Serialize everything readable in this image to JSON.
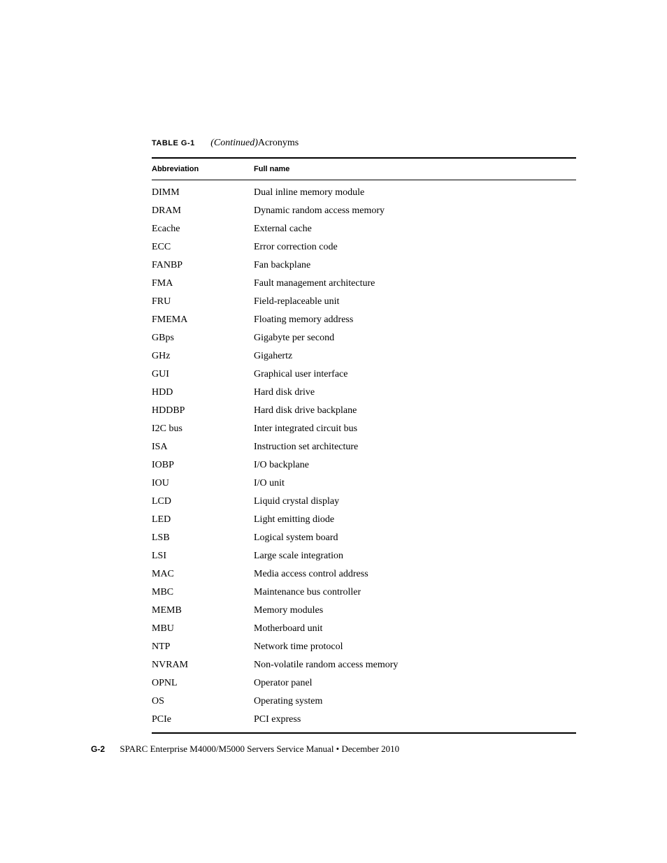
{
  "caption": {
    "label": "TABLE G-1",
    "continued": "(Continued)",
    "title": "Acronyms"
  },
  "table": {
    "headers": {
      "abbr": "Abbreviation",
      "fullname": "Full name"
    },
    "rows": [
      {
        "abbr": "DIMM",
        "fullname": "Dual inline memory module"
      },
      {
        "abbr": "DRAM",
        "fullname": "Dynamic random access memory"
      },
      {
        "abbr": "Ecache",
        "fullname": "External cache"
      },
      {
        "abbr": "ECC",
        "fullname": "Error correction code"
      },
      {
        "abbr": "FANBP",
        "fullname": "Fan backplane"
      },
      {
        "abbr": "FMA",
        "fullname": "Fault management architecture"
      },
      {
        "abbr": "FRU",
        "fullname": "Field-replaceable unit"
      },
      {
        "abbr": "FMEMA",
        "fullname": "Floating memory address"
      },
      {
        "abbr": "GBps",
        "fullname": "Gigabyte per second"
      },
      {
        "abbr": "GHz",
        "fullname": "Gigahertz"
      },
      {
        "abbr": "GUI",
        "fullname": "Graphical user interface"
      },
      {
        "abbr": "HDD",
        "fullname": "Hard disk drive"
      },
      {
        "abbr": "HDDBP",
        "fullname": "Hard disk drive backplane"
      },
      {
        "abbr": "I2C bus",
        "fullname": "Inter integrated circuit bus"
      },
      {
        "abbr": "ISA",
        "fullname": "Instruction set architecture"
      },
      {
        "abbr": "IOBP",
        "fullname": "I/O backplane"
      },
      {
        "abbr": "IOU",
        "fullname": "I/O unit"
      },
      {
        "abbr": "LCD",
        "fullname": "Liquid crystal display"
      },
      {
        "abbr": "LED",
        "fullname": "Light emitting diode"
      },
      {
        "abbr": "LSB",
        "fullname": "Logical system board"
      },
      {
        "abbr": "LSI",
        "fullname": "Large scale integration"
      },
      {
        "abbr": "MAC",
        "fullname": "Media access control address"
      },
      {
        "abbr": "MBC",
        "fullname": "Maintenance bus controller"
      },
      {
        "abbr": "MEMB",
        "fullname": "Memory modules"
      },
      {
        "abbr": "MBU",
        "fullname": "Motherboard unit"
      },
      {
        "abbr": "NTP",
        "fullname": "Network time protocol"
      },
      {
        "abbr": "NVRAM",
        "fullname": "Non-volatile random access memory"
      },
      {
        "abbr": "OPNL",
        "fullname": "Operator panel"
      },
      {
        "abbr": "OS",
        "fullname": "Operating system"
      },
      {
        "abbr": "PCIe",
        "fullname": "PCI express"
      }
    ]
  },
  "footer": {
    "page": "G-2",
    "text": "SPARC Enterprise M4000/M5000 Servers Service Manual  •  December 2010"
  },
  "colors": {
    "text": "#000000",
    "background": "#ffffff",
    "border": "#000000"
  }
}
